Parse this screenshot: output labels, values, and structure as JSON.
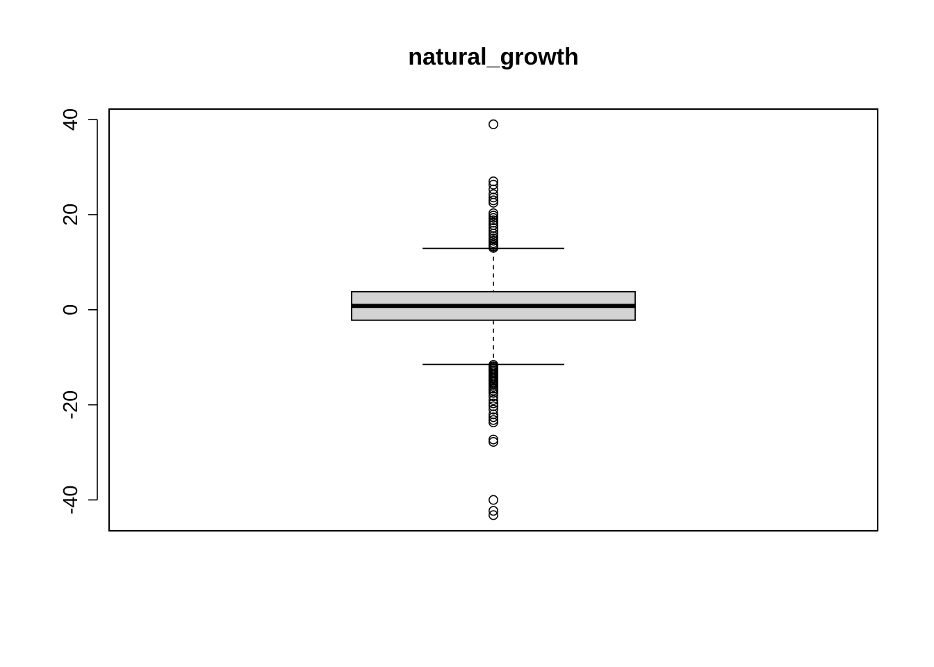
{
  "chart_data": {
    "type": "box",
    "title": "natural_growth",
    "xlabel": "",
    "ylabel": "",
    "ylim": [
      -46.5,
      42.2
    ],
    "y_ticks": [
      -40,
      -20,
      0,
      20,
      40
    ],
    "y_tick_labels": [
      "-40",
      "-20",
      "0",
      "20",
      "40"
    ],
    "grid": false,
    "legend": "none",
    "box": {
      "lower_whisker": -11.5,
      "q1": -2.2,
      "median": 0.8,
      "q3": 3.8,
      "upper_whisker": 12.9,
      "outliers_high": [
        13.0,
        13.3,
        13.6,
        14.0,
        14.5,
        15.0,
        15.5,
        16.0,
        16.6,
        17.2,
        17.8,
        18.3,
        18.8,
        19.3,
        19.8,
        20.3,
        22.5,
        23.0,
        23.6,
        24.3,
        25.3,
        26.3,
        27.0,
        39.0
      ],
      "outliers_low": [
        -11.6,
        -11.9,
        -12.2,
        -12.5,
        -12.8,
        -13.1,
        -13.4,
        -13.7,
        -14.0,
        -14.3,
        -14.6,
        -14.9,
        -15.2,
        -15.5,
        -15.8,
        -16.2,
        -16.6,
        -17.0,
        -17.5,
        -18.2,
        -19.0,
        -19.7,
        -20.3,
        -21.0,
        -22.0,
        -22.6,
        -23.2,
        -23.7,
        -27.3,
        -27.8,
        -40.0,
        -42.3,
        -43.2
      ]
    },
    "colors": {
      "box_fill": "#d3d3d3",
      "stroke": "#000000",
      "background": "#ffffff"
    }
  }
}
